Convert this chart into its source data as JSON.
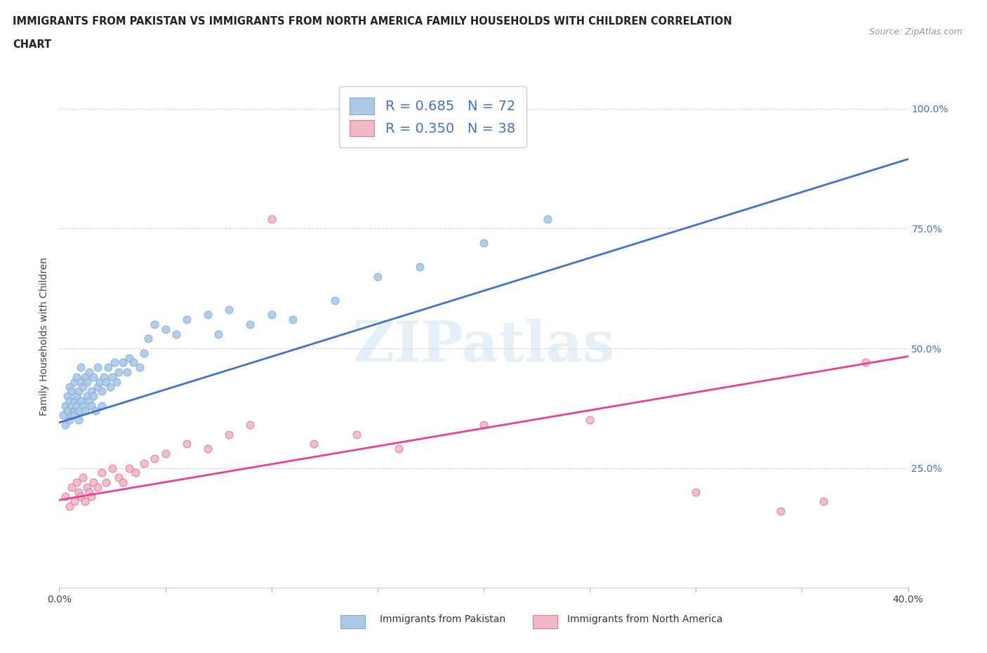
{
  "title_line1": "IMMIGRANTS FROM PAKISTAN VS IMMIGRANTS FROM NORTH AMERICA FAMILY HOUSEHOLDS WITH CHILDREN CORRELATION",
  "title_line2": "CHART",
  "source": "Source: ZipAtlas.com",
  "ylabel": "Family Households with Children",
  "xlim": [
    0.0,
    0.4
  ],
  "ylim": [
    0.0,
    1.05
  ],
  "ytick_positions": [
    0.25,
    0.5,
    0.75,
    1.0
  ],
  "ytick_labels": [
    "25.0%",
    "50.0%",
    "75.0%",
    "100.0%"
  ],
  "pakistan_color": "#adc8e8",
  "pakistan_edge": "#7bafd4",
  "north_america_color": "#f2b8c6",
  "north_america_edge": "#e07898",
  "pakistan_R": 0.685,
  "pakistan_N": 72,
  "north_america_R": 0.35,
  "north_america_N": 38,
  "line_pakistan_color": "#4472c4",
  "line_north_america_color": "#e84393",
  "pk_line_x": [
    0.0,
    0.4
  ],
  "pk_line_y": [
    0.345,
    0.895
  ],
  "na_line_x": [
    0.0,
    0.4
  ],
  "na_line_y": [
    0.183,
    0.483
  ],
  "watermark": "ZIPatlas",
  "background_color": "#ffffff",
  "pakistan_scatter_x": [
    0.002,
    0.003,
    0.003,
    0.004,
    0.004,
    0.005,
    0.005,
    0.005,
    0.006,
    0.006,
    0.006,
    0.007,
    0.007,
    0.007,
    0.007,
    0.008,
    0.008,
    0.008,
    0.009,
    0.009,
    0.009,
    0.01,
    0.01,
    0.01,
    0.011,
    0.011,
    0.012,
    0.012,
    0.013,
    0.013,
    0.014,
    0.014,
    0.015,
    0.015,
    0.016,
    0.016,
    0.017,
    0.018,
    0.018,
    0.019,
    0.02,
    0.02,
    0.021,
    0.022,
    0.023,
    0.024,
    0.025,
    0.026,
    0.027,
    0.028,
    0.03,
    0.032,
    0.033,
    0.035,
    0.038,
    0.04,
    0.042,
    0.045,
    0.05,
    0.055,
    0.06,
    0.07,
    0.075,
    0.08,
    0.09,
    0.1,
    0.11,
    0.13,
    0.15,
    0.17,
    0.2,
    0.23
  ],
  "pakistan_scatter_y": [
    0.36,
    0.38,
    0.34,
    0.37,
    0.4,
    0.35,
    0.39,
    0.42,
    0.36,
    0.38,
    0.41,
    0.37,
    0.39,
    0.43,
    0.36,
    0.38,
    0.4,
    0.44,
    0.37,
    0.41,
    0.35,
    0.39,
    0.43,
    0.46,
    0.38,
    0.42,
    0.37,
    0.44,
    0.4,
    0.43,
    0.39,
    0.45,
    0.38,
    0.41,
    0.4,
    0.44,
    0.37,
    0.42,
    0.46,
    0.43,
    0.38,
    0.41,
    0.44,
    0.43,
    0.46,
    0.42,
    0.44,
    0.47,
    0.43,
    0.45,
    0.47,
    0.45,
    0.48,
    0.47,
    0.46,
    0.49,
    0.52,
    0.55,
    0.54,
    0.53,
    0.56,
    0.57,
    0.53,
    0.58,
    0.55,
    0.57,
    0.56,
    0.6,
    0.65,
    0.67,
    0.72,
    0.77
  ],
  "north_america_scatter_x": [
    0.003,
    0.005,
    0.006,
    0.007,
    0.008,
    0.009,
    0.01,
    0.011,
    0.012,
    0.013,
    0.014,
    0.015,
    0.016,
    0.018,
    0.02,
    0.022,
    0.025,
    0.028,
    0.03,
    0.033,
    0.036,
    0.04,
    0.045,
    0.05,
    0.06,
    0.07,
    0.08,
    0.09,
    0.1,
    0.12,
    0.14,
    0.16,
    0.2,
    0.25,
    0.3,
    0.34,
    0.36,
    0.38
  ],
  "north_america_scatter_y": [
    0.19,
    0.17,
    0.21,
    0.18,
    0.22,
    0.2,
    0.19,
    0.23,
    0.18,
    0.21,
    0.2,
    0.19,
    0.22,
    0.21,
    0.24,
    0.22,
    0.25,
    0.23,
    0.22,
    0.25,
    0.24,
    0.26,
    0.27,
    0.28,
    0.3,
    0.29,
    0.32,
    0.34,
    0.77,
    0.3,
    0.32,
    0.29,
    0.34,
    0.35,
    0.2,
    0.16,
    0.18,
    0.47
  ]
}
